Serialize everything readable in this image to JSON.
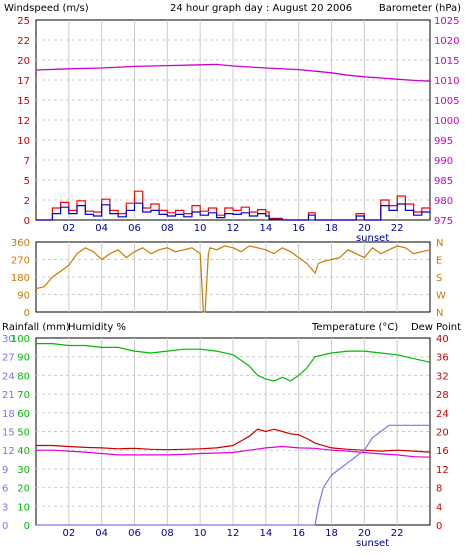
{
  "colors": {
    "wind": "#0000cc",
    "gust": "#ff0000",
    "baro": "#cc00cc",
    "dir": "#cc7a00",
    "hum": "#00bb00",
    "temp": "#cc0000",
    "dew": "#dd00dd",
    "rain": "#7777ee",
    "grid": "#cccccc",
    "axisRed": "#cc0000",
    "axisBlue": "#000099"
  },
  "chart_data": [
    {
      "type": "line",
      "title": "24 hour graph day : August 20 2006",
      "left_label": "Windspeed (m/s)",
      "right_label": "Barometer (hPa)",
      "x_ticks": [
        "02",
        "04",
        "06",
        "08",
        "10",
        "12",
        "14",
        "16",
        "18",
        "20",
        "22"
      ],
      "x_note": "sunset",
      "left_ticks": [
        "0",
        "2",
        "5",
        "7",
        "10",
        "12",
        "15",
        "17",
        "20",
        "22",
        "25"
      ],
      "right_ticks": [
        "975",
        "980",
        "985",
        "990",
        "995",
        "1000",
        "1005",
        "1010",
        "1015",
        "1020",
        "1025"
      ],
      "xlim": [
        0,
        24
      ],
      "ylim_left": [
        0,
        25
      ],
      "ylim_right": [
        975,
        1025
      ],
      "series": [
        {
          "role": "baro",
          "x": [
            0,
            2,
            4,
            6,
            8,
            10,
            11,
            12,
            14,
            16,
            17,
            18,
            19,
            20,
            21,
            22,
            23,
            24
          ],
          "y": [
            1012.5,
            1012.8,
            1013.0,
            1013.4,
            1013.6,
            1013.8,
            1013.9,
            1013.5,
            1013.0,
            1012.6,
            1012.2,
            1011.8,
            1011.2,
            1010.8,
            1010.5,
            1010.2,
            1009.9,
            1009.7
          ]
        },
        {
          "role": "gust",
          "x": [
            0,
            0.9,
            1,
            1.5,
            2,
            2.5,
            3,
            3.5,
            4,
            4.5,
            5,
            5.5,
            6,
            6.5,
            7,
            7.5,
            8,
            8.5,
            9,
            9.5,
            10,
            10.5,
            11,
            11.5,
            12,
            12.5,
            13,
            13.5,
            14,
            14.2,
            15,
            16,
            16.6,
            17,
            17.1,
            18,
            18.5,
            19,
            19.5,
            20,
            20.5,
            21,
            21.5,
            22,
            22.5,
            23,
            23.5,
            24
          ],
          "y": [
            0,
            0,
            1.5,
            2.2,
            1.2,
            2.4,
            1.1,
            1.0,
            2.6,
            1.2,
            0.8,
            2.1,
            3.6,
            1.5,
            2.0,
            1.2,
            0.9,
            1.2,
            0.8,
            1.8,
            1.1,
            1.5,
            0.6,
            1.5,
            1.2,
            1.6,
            1.0,
            1.3,
            1.0,
            0.2,
            0,
            0,
            0.9,
            0,
            0,
            0,
            0,
            0,
            0.8,
            0,
            0,
            2.5,
            1.8,
            3.0,
            2.0,
            1.0,
            1.5,
            1.8
          ]
        },
        {
          "role": "wind",
          "x": [
            0,
            0.9,
            1,
            1.5,
            2,
            2.5,
            3,
            3.5,
            4,
            4.5,
            5,
            5.5,
            6,
            6.5,
            7,
            7.5,
            8,
            8.5,
            9,
            9.5,
            10,
            10.5,
            11,
            11.5,
            12,
            12.5,
            13,
            13.5,
            14,
            14.2,
            15,
            16,
            16.6,
            17,
            17.1,
            18,
            18.5,
            19,
            19.5,
            20,
            20.5,
            21,
            21.5,
            22,
            22.5,
            23,
            23.5,
            24
          ],
          "y": [
            0,
            0,
            0.8,
            1.6,
            0.8,
            1.8,
            0.7,
            0.5,
            1.9,
            0.8,
            0.4,
            1.2,
            2.1,
            1.0,
            1.2,
            0.7,
            0.5,
            0.7,
            0.4,
            1.0,
            0.6,
            0.9,
            0.3,
            0.8,
            0.7,
            0.9,
            0.5,
            0.8,
            0.5,
            0.1,
            0,
            0,
            0.6,
            0,
            0,
            0,
            0,
            0,
            0.5,
            0,
            0,
            1.8,
            1.2,
            2.0,
            1.2,
            0.6,
            1.0,
            1.3
          ]
        }
      ]
    },
    {
      "type": "line",
      "left_ticks": [
        "0",
        "90",
        "180",
        "270",
        "360"
      ],
      "right_ticks": [
        "N",
        "W",
        "S",
        "E",
        "N"
      ],
      "x_ticks": [
        "02",
        "04",
        "06",
        "08",
        "10",
        "12",
        "14",
        "16",
        "18",
        "20",
        "22"
      ],
      "xlim": [
        0,
        24
      ],
      "ylim_left": [
        0,
        360
      ],
      "series": [
        {
          "role": "dir",
          "x": [
            0,
            0.5,
            1,
            1.5,
            2,
            2.5,
            3,
            3.5,
            4,
            4.5,
            5,
            5.5,
            6,
            6.5,
            7,
            7.5,
            8,
            8.5,
            9,
            9.5,
            10,
            10.2,
            10.3,
            10.5,
            10.6,
            11,
            11.5,
            12,
            12.5,
            13,
            13.5,
            14,
            14.5,
            15,
            15.5,
            16,
            16.5,
            16.8,
            17,
            17.2,
            17.5,
            18,
            18.5,
            19,
            19.5,
            20,
            20.5,
            21,
            21.5,
            22,
            22.5,
            23,
            23.5,
            24
          ],
          "y": [
            120,
            130,
            180,
            210,
            240,
            300,
            330,
            310,
            270,
            300,
            320,
            280,
            310,
            330,
            300,
            320,
            330,
            310,
            320,
            330,
            300,
            0,
            0,
            300,
            330,
            320,
            340,
            330,
            310,
            340,
            330,
            320,
            300,
            330,
            310,
            280,
            250,
            220,
            200,
            250,
            260,
            270,
            280,
            320,
            300,
            280,
            330,
            300,
            320,
            340,
            330,
            300,
            310,
            320
          ]
        }
      ]
    },
    {
      "type": "line",
      "left_label_rain": "Rainfall (mm)",
      "left_label_hum": "Humidity %",
      "right_label_temp": "Temperature (°C)",
      "right_label_dew": "Dew Point",
      "x_ticks": [
        "02",
        "04",
        "06",
        "08",
        "10",
        "12",
        "14",
        "16",
        "18",
        "20",
        "22"
      ],
      "x_note": "sunset",
      "rain_ticks": [
        "0",
        "3",
        "6",
        "9",
        "12",
        "15",
        "18",
        "21",
        "24",
        "27",
        "30"
      ],
      "hum_ticks": [
        "0",
        "10",
        "20",
        "30",
        "40",
        "50",
        "60",
        "70",
        "80",
        "90",
        "100"
      ],
      "temp_ticks": [
        "0",
        "4",
        "8",
        "12",
        "16",
        "20",
        "24",
        "28",
        "32",
        "36",
        "40"
      ],
      "xlim": [
        0,
        24
      ],
      "ylim_rain": [
        0,
        30
      ],
      "ylim_temp": [
        0,
        40
      ],
      "series": [
        {
          "role": "hum",
          "x": [
            0,
            1,
            2,
            3,
            4,
            5,
            6,
            7,
            8,
            9,
            10,
            11,
            12,
            12.5,
            13,
            13.5,
            14,
            14.5,
            15,
            15.5,
            16,
            16.5,
            17,
            18,
            19,
            20,
            21,
            22,
            23,
            24
          ],
          "y": [
            97,
            97,
            96,
            96,
            95,
            95,
            93,
            92,
            93,
            94,
            94,
            93,
            91,
            88,
            85,
            80,
            78,
            77,
            79,
            77,
            80,
            84,
            90,
            92,
            93,
            93,
            92,
            91,
            89,
            87
          ]
        },
        {
          "role": "temp",
          "x": [
            0,
            1,
            2,
            3,
            4,
            5,
            6,
            7,
            8,
            9,
            10,
            11,
            12,
            12.5,
            13,
            13.5,
            14,
            14.5,
            15,
            15.5,
            16,
            16.5,
            17,
            18,
            19,
            20,
            21,
            22,
            23,
            24
          ],
          "y": [
            17,
            17,
            16.8,
            16.6,
            16.5,
            16.3,
            16.4,
            16.2,
            16.1,
            16.2,
            16.3,
            16.5,
            17,
            18,
            19,
            20.5,
            20,
            20.5,
            20,
            19.5,
            19.3,
            18.5,
            17.5,
            16.5,
            16.2,
            16,
            15.8,
            16,
            15.8,
            15.6
          ]
        },
        {
          "role": "dew",
          "x": [
            0,
            1,
            2,
            3,
            4,
            5,
            6,
            7,
            8,
            9,
            10,
            11,
            12,
            13,
            14,
            15,
            16,
            17,
            18,
            19,
            20,
            21,
            22,
            23,
            24
          ],
          "y": [
            16,
            16,
            15.8,
            15.6,
            15.3,
            15,
            15,
            15,
            15,
            15.1,
            15.3,
            15.4,
            15.5,
            16,
            16.5,
            16.8,
            16.5,
            16.4,
            16,
            15.8,
            15.5,
            15.2,
            15,
            14.6,
            14.5
          ]
        },
        {
          "role": "rain",
          "x": [
            0,
            17,
            17.2,
            17.5,
            18,
            18.5,
            19,
            19.5,
            20,
            20.5,
            21,
            21.5,
            22,
            23,
            24
          ],
          "y": [
            0,
            0,
            3,
            6,
            8,
            9,
            10,
            11,
            12,
            14,
            15,
            16,
            16,
            16,
            16
          ]
        }
      ]
    }
  ]
}
